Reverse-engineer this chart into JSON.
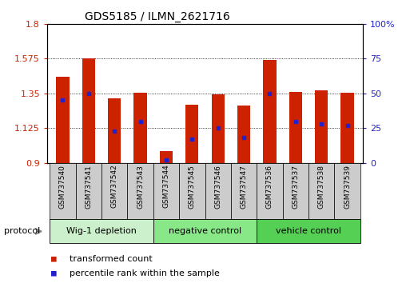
{
  "title": "GDS5185 / ILMN_2621716",
  "samples": [
    "GSM737540",
    "GSM737541",
    "GSM737542",
    "GSM737543",
    "GSM737544",
    "GSM737545",
    "GSM737546",
    "GSM737547",
    "GSM737536",
    "GSM737537",
    "GSM737538",
    "GSM737539"
  ],
  "transformed_count": [
    1.46,
    1.575,
    1.32,
    1.355,
    0.975,
    1.275,
    1.345,
    1.27,
    1.565,
    1.36,
    1.37,
    1.355
  ],
  "percentile_rank": [
    45,
    50,
    23,
    30,
    2,
    17,
    25,
    18,
    50,
    30,
    28,
    27
  ],
  "ylim_left": [
    0.9,
    1.8
  ],
  "ylim_right": [
    0,
    100
  ],
  "yticks_left": [
    0.9,
    1.125,
    1.35,
    1.575,
    1.8
  ],
  "yticks_right": [
    0,
    25,
    50,
    75,
    100
  ],
  "groups": [
    {
      "label": "Wig-1 depletion",
      "start": 0,
      "end": 4,
      "color": "#ccf0cc"
    },
    {
      "label": "negative control",
      "start": 4,
      "end": 8,
      "color": "#88e888"
    },
    {
      "label": "vehicle control",
      "start": 8,
      "end": 12,
      "color": "#55d055"
    }
  ],
  "bar_color": "#cc2200",
  "dot_color": "#2222cc",
  "bar_width": 0.5,
  "base_value": 0.9,
  "protocol_label": "protocol",
  "legend_items": [
    {
      "label": "transformed count",
      "color": "#cc2200"
    },
    {
      "label": "percentile rank within the sample",
      "color": "#2222cc"
    }
  ],
  "tick_color_left": "#cc2200",
  "tick_color_right": "#2222cc",
  "sample_bg_color": "#cccccc",
  "plot_bg_color": "#ffffff"
}
